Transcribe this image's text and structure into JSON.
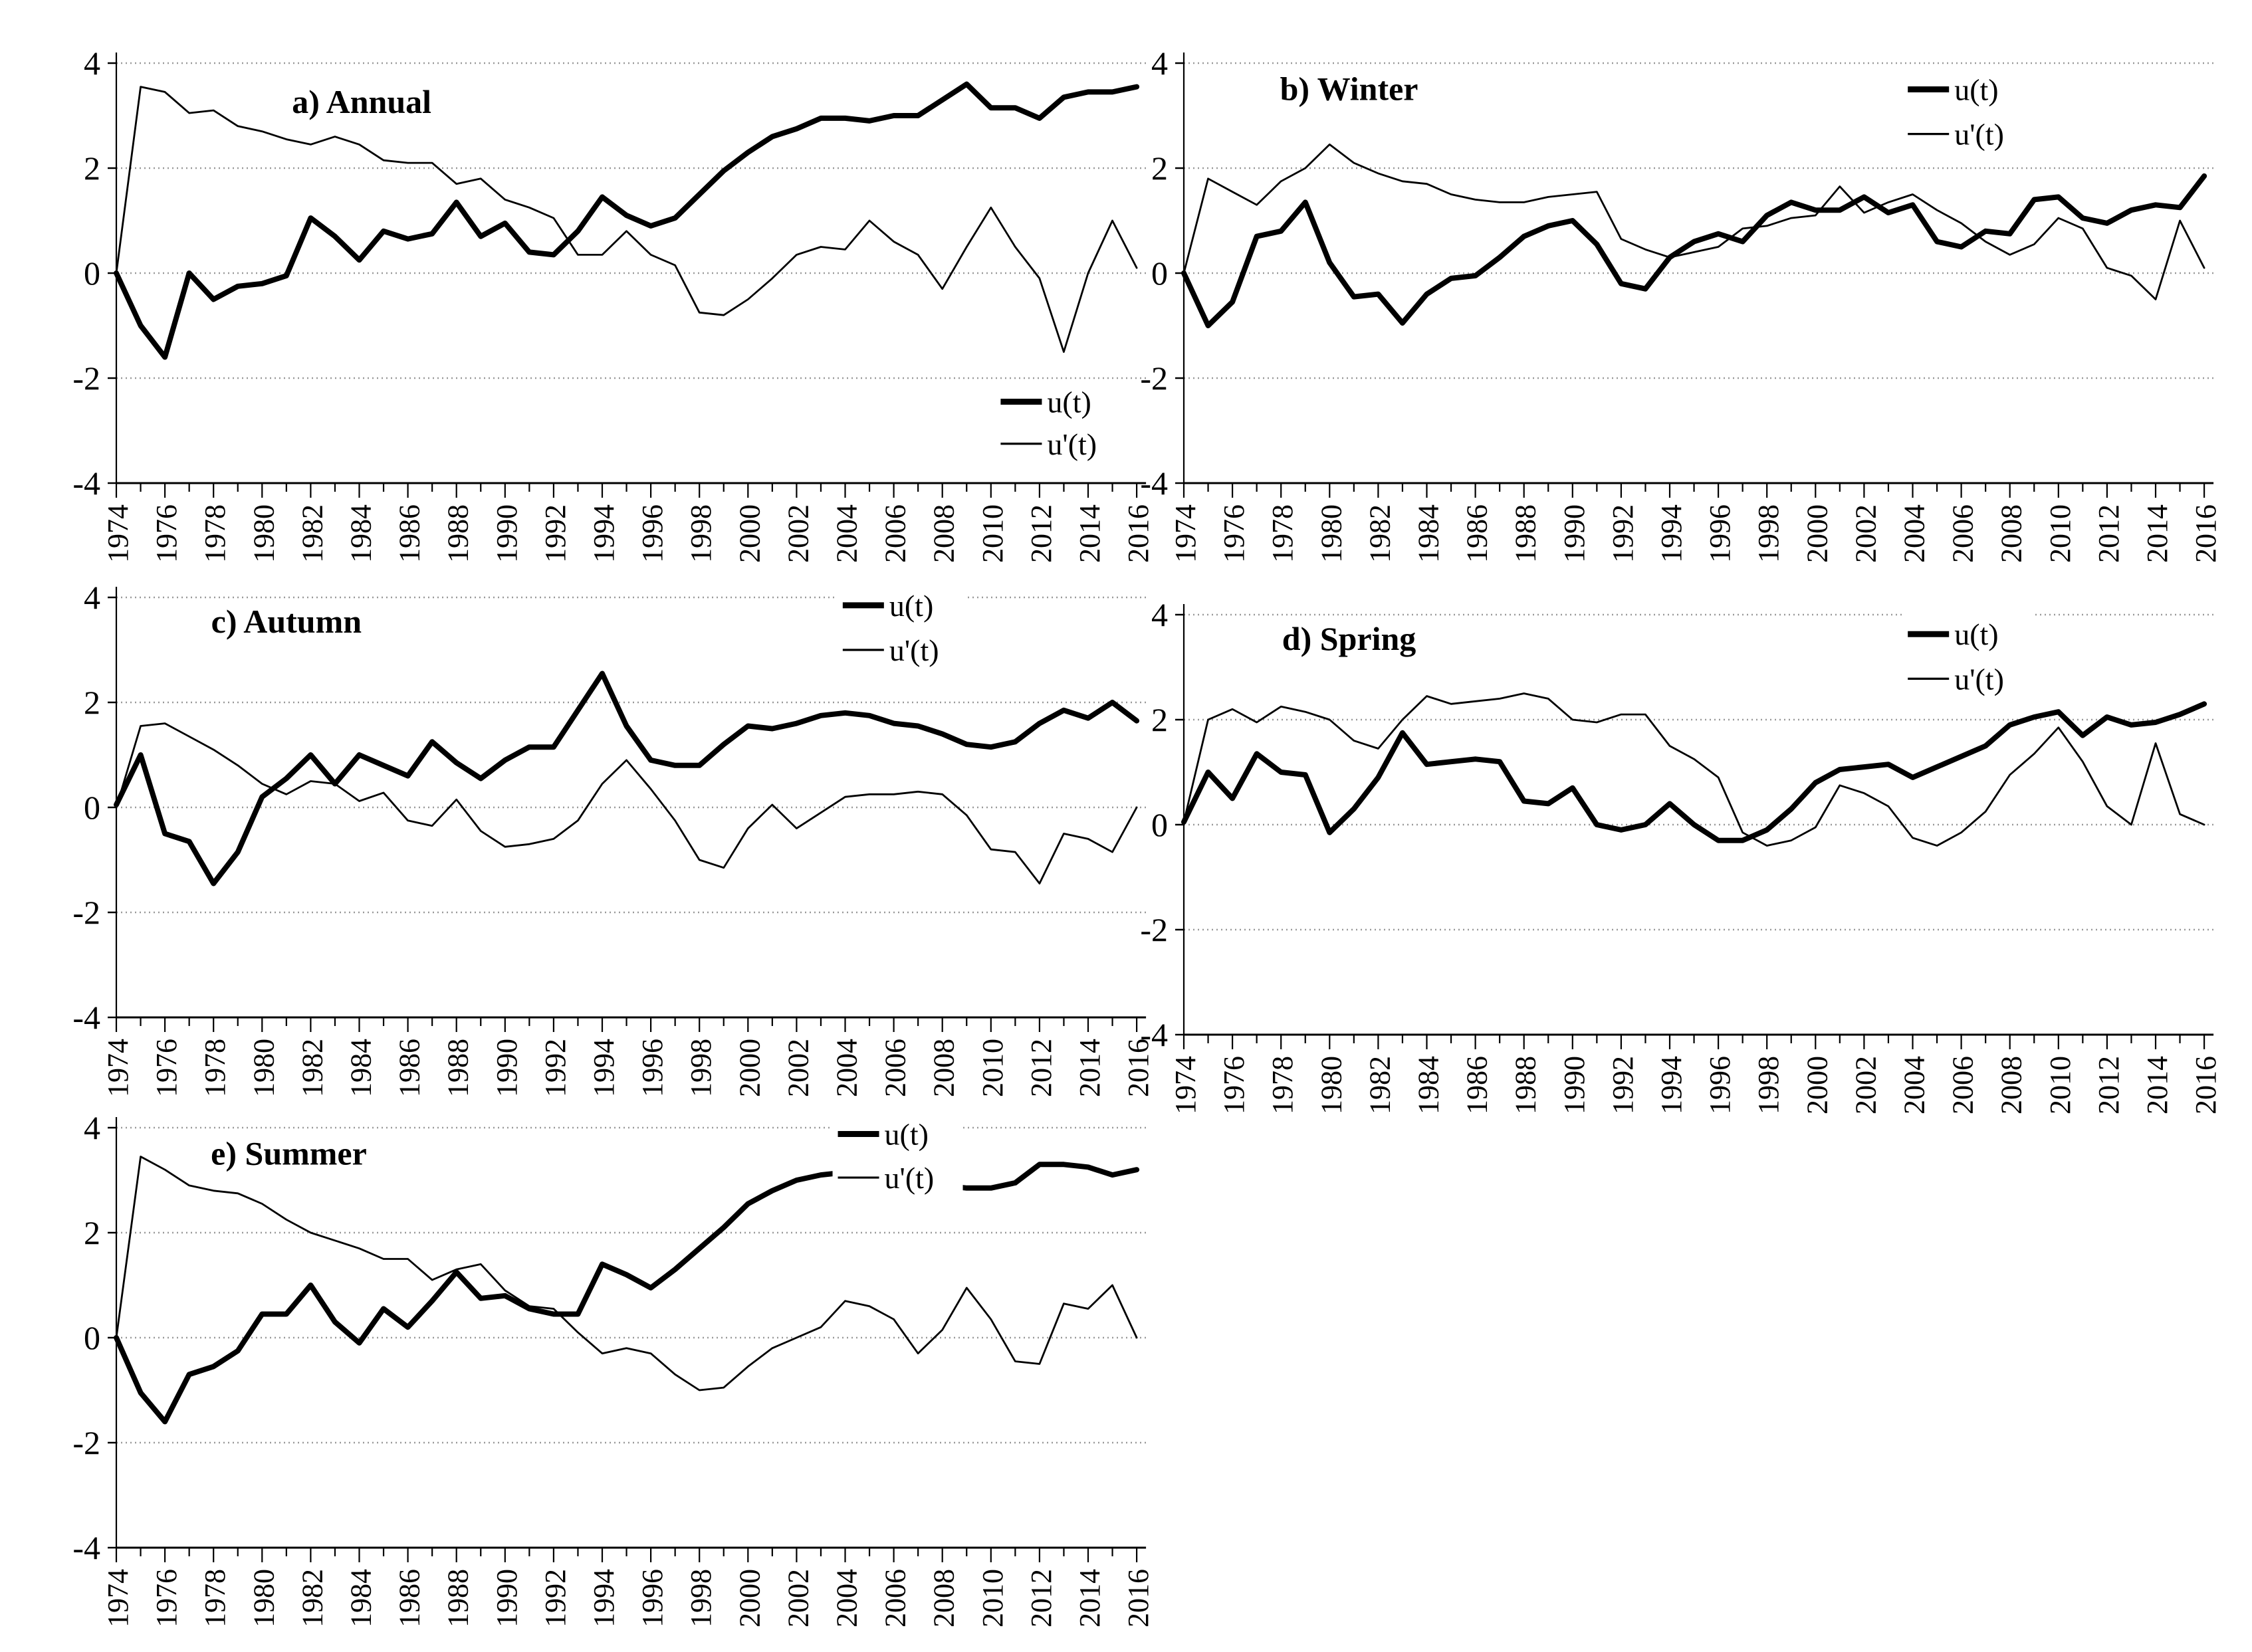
{
  "figure": {
    "background": "#ffffff",
    "line_color": "#000000",
    "grid_color": "#999999"
  },
  "axes": {
    "y_tick_labels": [
      "4",
      "2",
      "0",
      "-2",
      "-4"
    ],
    "y_tick_values": [
      4,
      2,
      0,
      -2,
      -4
    ],
    "x_tick_labels": [
      "1974",
      "1976",
      "1978",
      "1980",
      "1982",
      "1986",
      "1988",
      "1990",
      "1992",
      "1994",
      "1996",
      "1998",
      "2000",
      "2002",
      "2004",
      "2006",
      "2008",
      "2010",
      "2012",
      "2014",
      "2016"
    ],
    "x_start": 1974,
    "x_end": 2016,
    "x_label_step": 2,
    "ylim": [
      -4,
      4
    ]
  },
  "chart_data": [
    {
      "id": "a",
      "type": "line",
      "title": "a) Annual",
      "xlabel": "",
      "ylabel": "",
      "ylim": [
        -4,
        4
      ],
      "grid": "horizontal-dotted",
      "legend": [
        "u(t)",
        "u'(t)"
      ],
      "legend_position": "inside-bottom-right",
      "x": [
        1974,
        1975,
        1976,
        1977,
        1978,
        1979,
        1980,
        1981,
        1982,
        1983,
        1984,
        1985,
        1986,
        1987,
        1988,
        1989,
        1990,
        1991,
        1992,
        1993,
        1994,
        1995,
        1996,
        1997,
        1998,
        1999,
        2000,
        2001,
        2002,
        2003,
        2004,
        2005,
        2006,
        2007,
        2008,
        2009,
        2010,
        2011,
        2012,
        2013,
        2014,
        2015,
        2016
      ],
      "series": [
        {
          "name": "u(t)",
          "style": "thick",
          "values": [
            0,
            -1.0,
            -1.6,
            0.0,
            -0.5,
            -0.25,
            -0.2,
            -0.05,
            1.05,
            0.7,
            0.25,
            0.8,
            0.65,
            0.75,
            1.35,
            0.7,
            0.95,
            0.4,
            0.35,
            0.8,
            1.45,
            1.1,
            0.9,
            1.05,
            1.5,
            1.95,
            2.3,
            2.6,
            2.75,
            2.95,
            2.95,
            2.9,
            3.0,
            3.0,
            3.3,
            3.6,
            3.15,
            3.15,
            2.95,
            3.35,
            3.45,
            3.45,
            3.55
          ]
        },
        {
          "name": "u'(t)",
          "style": "thin",
          "values": [
            0,
            3.55,
            3.45,
            3.05,
            3.1,
            2.8,
            2.7,
            2.55,
            2.45,
            2.6,
            2.45,
            2.15,
            2.1,
            2.1,
            1.7,
            1.8,
            1.4,
            1.25,
            1.05,
            0.35,
            0.35,
            0.8,
            0.35,
            0.15,
            -0.75,
            -0.8,
            -0.5,
            -0.1,
            0.35,
            0.5,
            0.45,
            1.0,
            0.6,
            0.35,
            -0.3,
            0.5,
            1.25,
            0.5,
            -0.1,
            -1.5,
            0.0,
            1.0,
            0.1
          ]
        }
      ]
    },
    {
      "id": "b",
      "type": "line",
      "title": "b) Winter",
      "xlabel": "",
      "ylabel": "",
      "ylim": [
        -4,
        4
      ],
      "grid": "horizontal-dotted",
      "legend": [
        "u(t)",
        "u'(t)"
      ],
      "legend_position": "inside-top-center",
      "x": [
        1974,
        1975,
        1976,
        1977,
        1978,
        1979,
        1980,
        1981,
        1982,
        1983,
        1984,
        1985,
        1986,
        1987,
        1988,
        1989,
        1990,
        1991,
        1992,
        1993,
        1994,
        1995,
        1996,
        1997,
        1998,
        1999,
        2000,
        2001,
        2002,
        2003,
        2004,
        2005,
        2006,
        2007,
        2008,
        2009,
        2010,
        2011,
        2012,
        2013,
        2014,
        2015,
        2016
      ],
      "series": [
        {
          "name": "u(t)",
          "style": "thick",
          "values": [
            0,
            -1.0,
            -0.55,
            0.7,
            0.8,
            1.35,
            0.2,
            -0.45,
            -0.4,
            -0.95,
            -0.4,
            -0.1,
            -0.05,
            0.3,
            0.7,
            0.9,
            1.0,
            0.55,
            -0.2,
            -0.3,
            0.3,
            0.6,
            0.75,
            0.6,
            1.1,
            1.35,
            1.2,
            1.2,
            1.45,
            1.15,
            1.3,
            0.6,
            0.5,
            0.8,
            0.75,
            1.4,
            1.45,
            1.05,
            0.95,
            1.2,
            1.3,
            1.25,
            1.85
          ]
        },
        {
          "name": "u'(t)",
          "style": "thin",
          "values": [
            0,
            1.8,
            1.55,
            1.3,
            1.75,
            2.0,
            2.45,
            2.1,
            1.9,
            1.75,
            1.7,
            1.5,
            1.4,
            1.35,
            1.35,
            1.45,
            1.5,
            1.55,
            0.65,
            0.45,
            0.3,
            0.4,
            0.5,
            0.85,
            0.9,
            1.05,
            1.1,
            1.65,
            1.15,
            1.35,
            1.5,
            1.2,
            0.95,
            0.6,
            0.35,
            0.55,
            1.05,
            0.85,
            0.1,
            -0.05,
            -0.5,
            1.0,
            0.1
          ]
        }
      ]
    },
    {
      "id": "c",
      "type": "line",
      "title": "c) Autumn",
      "xlabel": "",
      "ylabel": "",
      "ylim": [
        -4,
        4
      ],
      "grid": "horizontal-dotted",
      "legend": [
        "u(t)",
        "u'(t)"
      ],
      "legend_position": "inside-top-right",
      "x": [
        1974,
        1975,
        1976,
        1977,
        1978,
        1979,
        1980,
        1981,
        1982,
        1983,
        1984,
        1985,
        1986,
        1987,
        1988,
        1989,
        1990,
        1991,
        1992,
        1993,
        1994,
        1995,
        1996,
        1997,
        1998,
        1999,
        2000,
        2001,
        2002,
        2003,
        2004,
        2005,
        2006,
        2007,
        2008,
        2009,
        2010,
        2011,
        2012,
        2013,
        2014,
        2015,
        2016
      ],
      "series": [
        {
          "name": "u(t)",
          "style": "thick",
          "values": [
            0.05,
            1.0,
            -0.5,
            -0.65,
            -1.45,
            -0.85,
            0.2,
            0.55,
            1.0,
            0.45,
            1.0,
            0.8,
            0.6,
            1.25,
            0.85,
            0.55,
            0.9,
            1.15,
            1.15,
            1.85,
            2.55,
            1.55,
            0.9,
            0.8,
            0.8,
            1.2,
            1.55,
            1.5,
            1.6,
            1.75,
            1.8,
            1.75,
            1.6,
            1.55,
            1.4,
            1.2,
            1.15,
            1.25,
            1.6,
            1.85,
            1.7,
            2.0,
            1.65
          ]
        },
        {
          "name": "u'(t)",
          "style": "thin",
          "values": [
            0,
            1.55,
            1.6,
            1.35,
            1.1,
            0.8,
            0.45,
            0.25,
            0.5,
            0.45,
            0.12,
            0.28,
            -0.25,
            -0.35,
            0.15,
            -0.45,
            -0.75,
            -0.7,
            -0.6,
            -0.25,
            0.45,
            0.9,
            0.35,
            -0.25,
            -1.0,
            -1.15,
            -0.4,
            0.05,
            -0.4,
            -0.1,
            0.2,
            0.25,
            0.25,
            0.3,
            0.25,
            -0.15,
            -0.8,
            -0.85,
            -1.45,
            -0.5,
            -0.6,
            -0.85,
            0.0
          ]
        }
      ]
    },
    {
      "id": "d",
      "type": "line",
      "title": "d) Spring",
      "xlabel": "",
      "ylabel": "",
      "ylim": [
        -4,
        4
      ],
      "grid": "horizontal-dotted",
      "legend": [
        "u(t)",
        "u'(t)"
      ],
      "legend_position": "inside-top-center",
      "x": [
        1974,
        1975,
        1976,
        1977,
        1978,
        1979,
        1980,
        1981,
        1982,
        1983,
        1984,
        1985,
        1986,
        1987,
        1988,
        1989,
        1990,
        1991,
        1992,
        1993,
        1994,
        1995,
        1996,
        1997,
        1998,
        1999,
        2000,
        2001,
        2002,
        2003,
        2004,
        2005,
        2006,
        2007,
        2008,
        2009,
        2010,
        2011,
        2012,
        2013,
        2014,
        2015,
        2016
      ],
      "series": [
        {
          "name": "u(t)",
          "style": "thick",
          "values": [
            0.05,
            1.0,
            0.5,
            1.35,
            1.0,
            0.95,
            -0.15,
            0.3,
            0.9,
            1.75,
            1.15,
            1.2,
            1.25,
            1.2,
            0.45,
            0.4,
            0.7,
            0.0,
            -0.1,
            0.0,
            0.4,
            0.0,
            -0.3,
            -0.3,
            -0.1,
            0.3,
            0.8,
            1.05,
            1.1,
            1.15,
            0.9,
            1.1,
            1.3,
            1.5,
            1.9,
            2.05,
            2.15,
            1.7,
            2.05,
            1.9,
            1.95,
            2.1,
            2.3
          ]
        },
        {
          "name": "u'(t)",
          "style": "thin",
          "values": [
            0.05,
            2.0,
            2.2,
            1.95,
            2.25,
            2.15,
            2.0,
            1.6,
            1.45,
            2.0,
            2.45,
            2.3,
            2.35,
            2.4,
            2.5,
            2.4,
            2.0,
            1.95,
            2.1,
            2.1,
            1.5,
            1.25,
            0.9,
            -0.15,
            -0.4,
            -0.3,
            -0.05,
            0.75,
            0.6,
            0.35,
            -0.25,
            -0.4,
            -0.15,
            0.25,
            0.95,
            1.35,
            1.85,
            1.2,
            0.35,
            0.0,
            1.55,
            0.2,
            0.0
          ]
        }
      ]
    },
    {
      "id": "e",
      "type": "line",
      "title": "e) Summer",
      "xlabel": "",
      "ylabel": "",
      "ylim": [
        -4,
        4
      ],
      "grid": "horizontal-dotted",
      "legend": [
        "u(t)",
        "u'(t)"
      ],
      "legend_position": "inside-top-right",
      "x": [
        1974,
        1975,
        1976,
        1977,
        1978,
        1979,
        1980,
        1981,
        1982,
        1983,
        1984,
        1985,
        1986,
        1987,
        1988,
        1989,
        1990,
        1991,
        1992,
        1993,
        1994,
        1995,
        1996,
        1997,
        1998,
        1999,
        2000,
        2001,
        2002,
        2003,
        2004,
        2005,
        2006,
        2007,
        2008,
        2009,
        2010,
        2011,
        2012,
        2013,
        2014,
        2015,
        2016
      ],
      "series": [
        {
          "name": "u(t)",
          "style": "thick",
          "values": [
            0.0,
            -1.05,
            -1.6,
            -0.7,
            -0.55,
            -0.25,
            0.45,
            0.45,
            1.0,
            0.3,
            -0.1,
            0.55,
            0.2,
            0.7,
            1.25,
            0.75,
            0.8,
            0.55,
            0.45,
            0.45,
            1.4,
            1.2,
            0.95,
            1.3,
            1.7,
            2.1,
            2.55,
            2.8,
            3.0,
            3.1,
            3.15,
            3.1,
            3.0,
            2.95,
            2.9,
            2.85,
            2.85,
            2.95,
            3.3,
            3.3,
            3.25,
            3.1,
            3.2
          ]
        },
        {
          "name": "u'(t)",
          "style": "thin",
          "values": [
            0.0,
            3.45,
            3.2,
            2.9,
            2.8,
            2.75,
            2.55,
            2.25,
            2.0,
            1.85,
            1.7,
            1.5,
            1.5,
            1.1,
            1.3,
            1.4,
            0.9,
            0.6,
            0.55,
            0.1,
            -0.3,
            -0.2,
            -0.3,
            -0.7,
            -1.0,
            -0.95,
            -0.55,
            -0.2,
            0.0,
            0.2,
            0.7,
            0.6,
            0.35,
            -0.3,
            0.15,
            0.95,
            0.35,
            -0.45,
            -0.5,
            0.65,
            0.55,
            1.0,
            0.0
          ]
        }
      ]
    }
  ]
}
